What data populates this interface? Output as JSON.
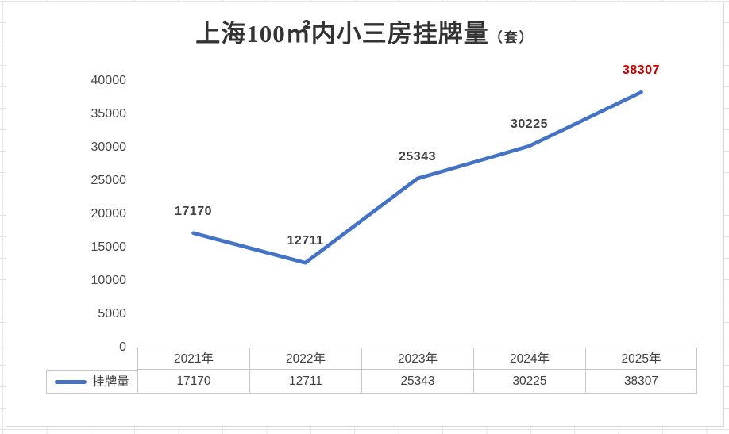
{
  "chart_data": {
    "type": "line",
    "title": "上海100㎡内小三房挂牌量",
    "title_unit": "（套）",
    "categories": [
      "2021年",
      "2022年",
      "2023年",
      "2024年",
      "2025年"
    ],
    "series": [
      {
        "name": "挂牌量",
        "values": [
          17170,
          12711,
          25343,
          30225,
          38307
        ]
      }
    ],
    "data_labels": [
      "17170",
      "12711",
      "25343",
      "30225",
      "38307"
    ],
    "y_ticks": [
      40000,
      35000,
      30000,
      25000,
      20000,
      15000,
      10000,
      5000,
      0
    ],
    "ylim": [
      0,
      40000
    ],
    "grid": false,
    "markers": false,
    "legend_position": "bottom-table-left",
    "highlight_index": 4,
    "colors": {
      "line": "#4472C4",
      "data_label": "#404040",
      "last_data_label": "#C00000",
      "axis_text": "#474747",
      "title_text": "#333333",
      "table_border": "#C7C7C7"
    }
  }
}
